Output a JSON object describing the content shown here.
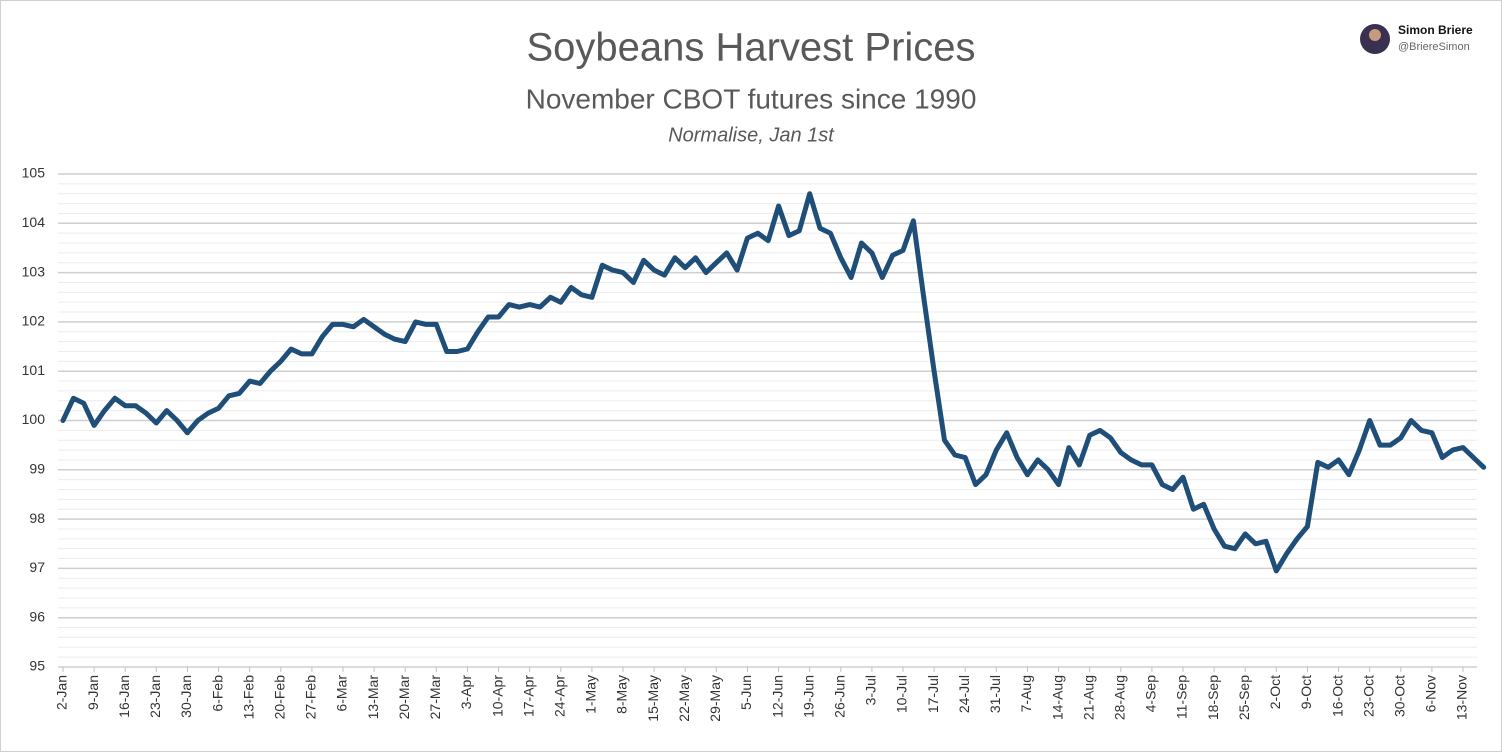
{
  "badge": {
    "name": "Simon Briere",
    "handle": "@BriereSimon"
  },
  "chart_data": {
    "type": "line",
    "title": "Soybeans Harvest Prices",
    "subtitle": "November CBOT futures since 1990",
    "note": "Normalise, Jan 1st",
    "categories": [
      "2-Jan",
      null,
      null,
      "9-Jan",
      null,
      null,
      "16-Jan",
      null,
      null,
      "23-Jan",
      null,
      null,
      "30-Jan",
      null,
      null,
      "6-Feb",
      null,
      null,
      "13-Feb",
      null,
      null,
      "20-Feb",
      null,
      null,
      "27-Feb",
      null,
      null,
      "6-Mar",
      null,
      null,
      "13-Mar",
      null,
      null,
      "20-Mar",
      null,
      null,
      "27-Mar",
      null,
      null,
      "3-Apr",
      null,
      null,
      "10-Apr",
      null,
      null,
      "17-Apr",
      null,
      null,
      "24-Apr",
      null,
      null,
      "1-May",
      null,
      null,
      "8-May",
      null,
      null,
      "15-May",
      null,
      null,
      "22-May",
      null,
      null,
      "29-May",
      null,
      null,
      "5-Jun",
      null,
      null,
      "12-Jun",
      null,
      null,
      "19-Jun",
      null,
      null,
      "26-Jun",
      null,
      null,
      "3-Jul",
      null,
      null,
      "10-Jul",
      null,
      null,
      "17-Jul",
      null,
      null,
      "24-Jul",
      null,
      null,
      "31-Jul",
      null,
      null,
      "7-Aug",
      null,
      null,
      "14-Aug",
      null,
      null,
      "21-Aug",
      null,
      null,
      "28-Aug",
      null,
      null,
      "4-Sep",
      null,
      null,
      "11-Sep",
      null,
      null,
      "18-Sep",
      null,
      null,
      "25-Sep",
      null,
      null,
      "2-Oct",
      null,
      null,
      "9-Oct",
      null,
      null,
      "16-Oct",
      null,
      null,
      "23-Oct",
      null,
      null,
      "30-Oct",
      null,
      null,
      "6-Nov",
      null,
      null,
      "13-Nov",
      null,
      null
    ],
    "series": [
      {
        "name": "Soybeans",
        "color": "#1f4e79",
        "values": [
          100.0,
          100.45,
          100.35,
          99.9,
          100.2,
          100.45,
          100.3,
          100.3,
          100.15,
          99.95,
          100.2,
          100.0,
          99.75,
          100.0,
          100.15,
          100.25,
          100.5,
          100.55,
          100.8,
          100.75,
          101.0,
          101.2,
          101.45,
          101.35,
          101.35,
          101.7,
          101.95,
          101.95,
          101.9,
          102.05,
          101.9,
          101.75,
          101.65,
          101.6,
          102.0,
          101.95,
          101.95,
          101.4,
          101.4,
          101.45,
          101.8,
          102.1,
          102.1,
          102.35,
          102.3,
          102.35,
          102.3,
          102.5,
          102.4,
          102.7,
          102.55,
          102.5,
          103.15,
          103.05,
          103.0,
          102.8,
          103.25,
          103.05,
          102.95,
          103.3,
          103.1,
          103.3,
          103.0,
          103.2,
          103.4,
          103.05,
          103.7,
          103.8,
          103.65,
          104.35,
          103.75,
          103.85,
          104.6,
          103.9,
          103.8,
          103.3,
          102.9,
          103.6,
          103.4,
          102.9,
          103.35,
          103.45,
          104.05,
          102.5,
          101.0,
          99.6,
          99.3,
          99.25,
          98.7,
          98.9,
          99.4,
          99.75,
          99.25,
          98.9,
          99.2,
          99.0,
          98.7,
          99.45,
          99.1,
          99.7,
          99.8,
          99.65,
          99.35,
          99.2,
          99.1,
          99.1,
          98.7,
          98.6,
          98.85,
          98.2,
          98.3,
          97.8,
          97.45,
          97.4,
          97.7,
          97.5,
          97.55,
          96.95,
          97.3,
          97.6,
          97.85,
          99.15,
          99.05,
          99.2,
          98.9,
          99.4,
          100.0,
          99.5,
          99.5,
          99.65,
          100.0,
          99.8,
          99.75,
          99.25,
          99.4,
          99.45,
          99.25,
          99.05
        ]
      }
    ],
    "ylim": [
      95,
      105
    ],
    "yticks": [
      95,
      96,
      97,
      98,
      99,
      100,
      101,
      102,
      103,
      104,
      105
    ],
    "minor_yticks": [
      95.2,
      95.4,
      95.6,
      95.8,
      96.2,
      96.4,
      96.6,
      96.8,
      97.2,
      97.4,
      97.6,
      97.8,
      98.2,
      98.4,
      98.6,
      98.8,
      99.2,
      99.4,
      99.6,
      99.8,
      100.2,
      100.4,
      100.6,
      100.8,
      101.2,
      101.4,
      101.6,
      101.8,
      102.2,
      102.4,
      102.6,
      102.8,
      103.2,
      103.4,
      103.6,
      103.8,
      104.2,
      104.4,
      104.6,
      104.8
    ],
    "grid": true
  }
}
